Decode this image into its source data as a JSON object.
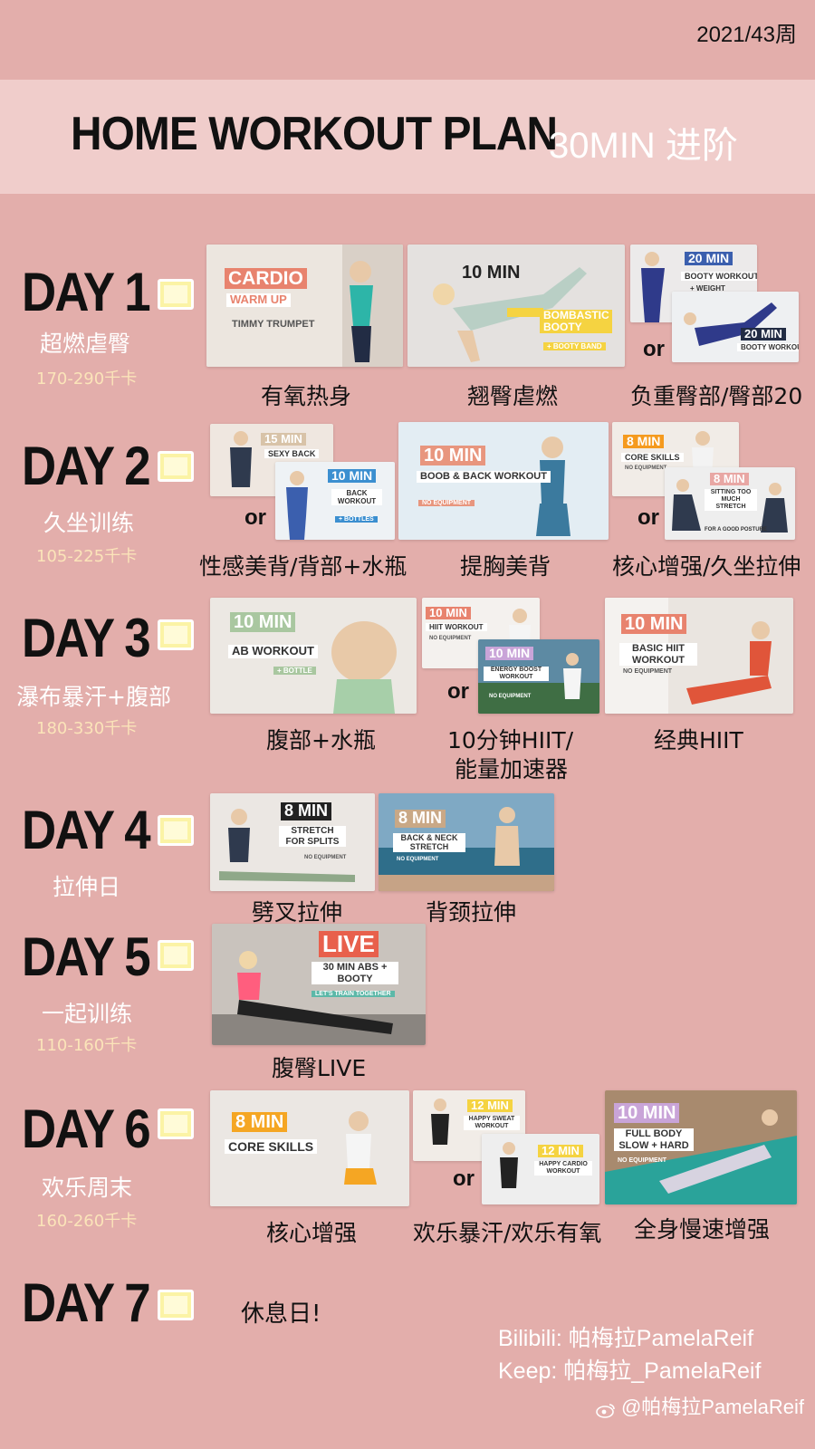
{
  "week": "2021/43周",
  "banner": {
    "title": "HOME WORKOUT PLAN",
    "level": "30MIN 进阶"
  },
  "colors": {
    "background": "#e3aeab",
    "banner": "#f0cdcb",
    "checkbox": "#fbf3a5"
  },
  "days": [
    {
      "label": "DAY 1",
      "sub": "超燃虐臀",
      "kcal": "170-290千卡",
      "videos": [
        {
          "tag": "CARDIO",
          "sub": "WARM UP",
          "note": "TIMMY TRUMPET",
          "caption": "有氧热身"
        },
        {
          "tag": "10 MIN",
          "sub": "BOMBASTIC BOOTY",
          "note": "+ BOOTY BAND",
          "caption": "翘臀虐燃"
        },
        {
          "or": "or",
          "a_tag": "20 MIN",
          "a_sub": "BOOTY WORKOUT",
          "a_note": "+ WEIGHT",
          "b_tag": "20 MIN",
          "b_sub": "BOOTY WORKOUT",
          "caption": "负重臀部/臀部20"
        }
      ]
    },
    {
      "label": "DAY 2",
      "sub": "久坐训练",
      "kcal": "105-225千卡",
      "videos": [
        {
          "or": "or",
          "a_tag": "15 MIN",
          "a_sub": "SEXY BACK",
          "b_tag": "10 MIN",
          "b_sub": "BACK WORKOUT",
          "b_note": "+ BOTTLES",
          "caption": "性感美背/背部+水瓶"
        },
        {
          "tag": "10 MIN",
          "sub": "BOOB & BACK WORKOUT",
          "note": "NO EQUIPMENT",
          "caption": "提胸美背"
        },
        {
          "or": "or",
          "a_tag": "8 MIN",
          "a_sub": "CORE SKILLS",
          "a_note": "NO EQUIPMENT",
          "b_tag": "8 MIN",
          "b_sub": "SITTING TOO MUCH STRETCH",
          "b_note": "FOR A GOOD POSTURE",
          "caption": "核心增强/久坐拉伸"
        }
      ]
    },
    {
      "label": "DAY 3",
      "sub": "瀑布暴汗+腹部",
      "kcal": "180-330千卡",
      "videos": [
        {
          "tag": "10 MIN",
          "sub": "AB WORKOUT",
          "note": "+ BOTTLE",
          "caption": "腹部+水瓶"
        },
        {
          "or": "or",
          "a_tag": "10 MIN",
          "a_sub": "HIIT WORKOUT",
          "a_note": "NO EQUIPMENT",
          "b_tag": "10 MIN",
          "b_sub": "ENERGY BOOST WORKOUT",
          "b_note": "NO EQUIPMENT",
          "caption": "10分钟HIIT/",
          "caption2": "能量加速器"
        },
        {
          "tag": "10 MIN",
          "sub": "BASIC HIIT WORKOUT",
          "note": "NO EQUIPMENT",
          "caption": "经典HIIT"
        }
      ]
    },
    {
      "label": "DAY 4",
      "sub": "拉伸日",
      "kcal": "",
      "videos": [
        {
          "tag": "8 MIN",
          "sub": "STRETCH FOR SPLITS",
          "note": "NO EQUIPMENT",
          "caption": "劈叉拉伸"
        },
        {
          "tag": "8 MIN",
          "sub": "BACK & NECK STRETCH",
          "note": "NO EQUIPMENT",
          "caption": "背颈拉伸"
        }
      ]
    },
    {
      "label": "DAY 5",
      "sub": "一起训练",
      "kcal": "110-160千卡",
      "videos": [
        {
          "tag": "LIVE",
          "sub": "30 MIN ABS + BOOTY",
          "note": "LET'S TRAIN TOGETHER",
          "caption": "腹臀LIVE"
        }
      ]
    },
    {
      "label": "DAY 6",
      "sub": "欢乐周末",
      "kcal": "160-260千卡",
      "videos": [
        {
          "tag": "8 MIN",
          "sub": "CORE SKILLS",
          "caption": "核心增强"
        },
        {
          "or": "or",
          "a_tag": "12 MIN",
          "a_sub": "HAPPY SWEAT WORKOUT",
          "b_tag": "12 MIN",
          "b_sub": "HAPPY CARDIO WORKOUT",
          "caption": "欢乐暴汗/欢乐有氧"
        },
        {
          "tag": "10 MIN",
          "sub": "FULL BODY SLOW + HARD",
          "note": "NO EQUIPMENT",
          "caption": "全身慢速增强"
        }
      ]
    },
    {
      "label": "DAY 7",
      "rest": "休息日!"
    }
  ],
  "credits": {
    "bilibili": "Bilibili: 帕梅拉PamelaReif",
    "keep": "Keep: 帕梅拉_PamelaReif",
    "weibo": "@帕梅拉PamelaReif"
  }
}
